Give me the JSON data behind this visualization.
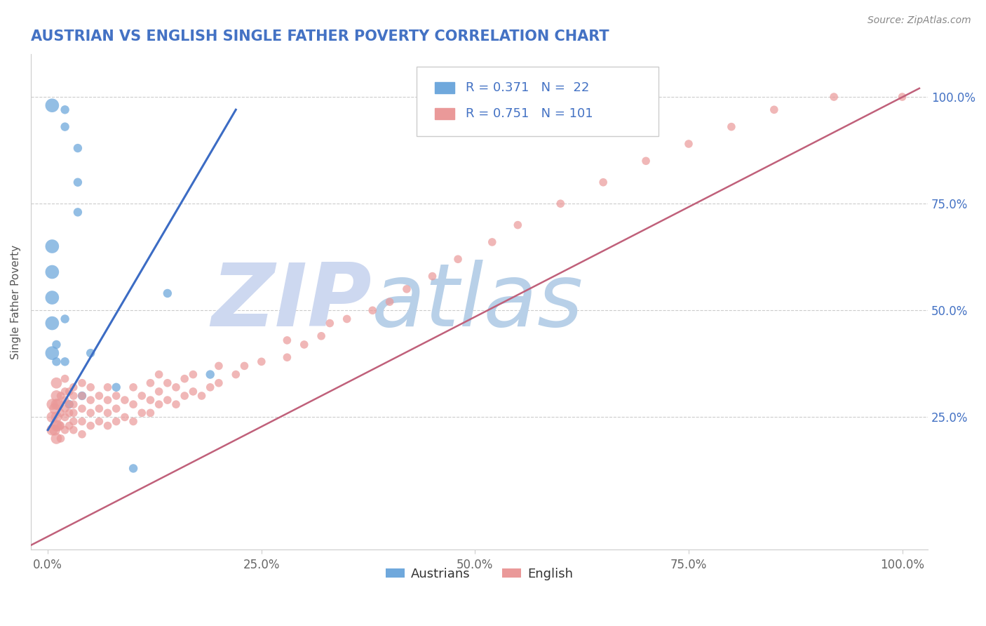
{
  "title": "AUSTRIAN VS ENGLISH SINGLE FATHER POVERTY CORRELATION CHART",
  "title_color": "#4472c4",
  "source_text": "Source: ZipAtlas.com",
  "ylabel": "Single Father Poverty",
  "x_ticks": [
    0.0,
    0.25,
    0.5,
    0.75,
    1.0
  ],
  "x_tick_labels": [
    "0.0%",
    "25.0%",
    "50.0%",
    "75.0%",
    "100.0%"
  ],
  "y_ticks_right": [
    0.25,
    0.5,
    0.75,
    1.0
  ],
  "y_tick_labels_right": [
    "25.0%",
    "50.0%",
    "75.0%",
    "100.0%"
  ],
  "dot_color_austrians": "#6fa8dc",
  "dot_color_english": "#ea9999",
  "line_color_austrians": "#3c6cc4",
  "line_color_english": "#c0607a",
  "watermark_zip": "ZIP",
  "watermark_atlas": "atlas",
  "watermark_color_zip": "#d0d8f0",
  "watermark_color_atlas": "#b8d4e8",
  "background_color": "#ffffff",
  "grid_color": "#cccccc",
  "legend_color": "#4472c4",
  "austrians_x": [
    0.005,
    0.02,
    0.02,
    0.035,
    0.035,
    0.035,
    0.005,
    0.005,
    0.005,
    0.005,
    0.005,
    0.01,
    0.01,
    0.02,
    0.02,
    0.025,
    0.04,
    0.05,
    0.08,
    0.1,
    0.19,
    0.14
  ],
  "austrians_y": [
    0.98,
    0.97,
    0.93,
    0.88,
    0.8,
    0.73,
    0.65,
    0.59,
    0.53,
    0.47,
    0.4,
    0.38,
    0.42,
    0.38,
    0.48,
    0.28,
    0.3,
    0.4,
    0.32,
    0.13,
    0.35,
    0.54
  ],
  "english_x": [
    0.005,
    0.005,
    0.005,
    0.008,
    0.008,
    0.01,
    0.01,
    0.01,
    0.01,
    0.01,
    0.01,
    0.012,
    0.012,
    0.015,
    0.015,
    0.015,
    0.015,
    0.02,
    0.02,
    0.02,
    0.02,
    0.02,
    0.02,
    0.025,
    0.025,
    0.025,
    0.025,
    0.03,
    0.03,
    0.03,
    0.03,
    0.03,
    0.03,
    0.04,
    0.04,
    0.04,
    0.04,
    0.04,
    0.05,
    0.05,
    0.05,
    0.05,
    0.06,
    0.06,
    0.06,
    0.07,
    0.07,
    0.07,
    0.07,
    0.08,
    0.08,
    0.08,
    0.09,
    0.09,
    0.1,
    0.1,
    0.1,
    0.11,
    0.11,
    0.12,
    0.12,
    0.12,
    0.13,
    0.13,
    0.13,
    0.14,
    0.14,
    0.15,
    0.15,
    0.16,
    0.16,
    0.17,
    0.17,
    0.18,
    0.19,
    0.2,
    0.2,
    0.22,
    0.23,
    0.25,
    0.28,
    0.28,
    0.3,
    0.32,
    0.33,
    0.35,
    0.38,
    0.4,
    0.42,
    0.45,
    0.48,
    0.52,
    0.55,
    0.6,
    0.65,
    0.7,
    0.75,
    0.8,
    0.85,
    0.92,
    1.0
  ],
  "english_y": [
    0.22,
    0.25,
    0.28,
    0.22,
    0.27,
    0.2,
    0.23,
    0.25,
    0.28,
    0.3,
    0.33,
    0.23,
    0.28,
    0.2,
    0.23,
    0.26,
    0.3,
    0.22,
    0.25,
    0.27,
    0.29,
    0.31,
    0.34,
    0.23,
    0.26,
    0.28,
    0.31,
    0.22,
    0.24,
    0.26,
    0.28,
    0.3,
    0.32,
    0.21,
    0.24,
    0.27,
    0.3,
    0.33,
    0.23,
    0.26,
    0.29,
    0.32,
    0.24,
    0.27,
    0.3,
    0.23,
    0.26,
    0.29,
    0.32,
    0.24,
    0.27,
    0.3,
    0.25,
    0.29,
    0.24,
    0.28,
    0.32,
    0.26,
    0.3,
    0.26,
    0.29,
    0.33,
    0.28,
    0.31,
    0.35,
    0.29,
    0.33,
    0.28,
    0.32,
    0.3,
    0.34,
    0.31,
    0.35,
    0.3,
    0.32,
    0.33,
    0.37,
    0.35,
    0.37,
    0.38,
    0.39,
    0.43,
    0.42,
    0.44,
    0.47,
    0.48,
    0.5,
    0.52,
    0.55,
    0.58,
    0.62,
    0.66,
    0.7,
    0.75,
    0.8,
    0.85,
    0.89,
    0.93,
    0.97,
    1.0,
    1.0
  ]
}
